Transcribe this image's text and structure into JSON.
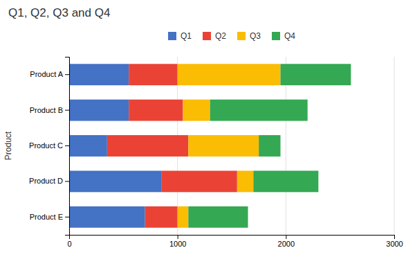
{
  "chart_data": {
    "type": "bar",
    "orientation": "horizontal",
    "stacked": true,
    "title": "Q1, Q2, Q3 and Q4",
    "ylabel": "Product",
    "categories": [
      "Product A",
      "Product B",
      "Product C",
      "Product D",
      "Product E"
    ],
    "series": [
      {
        "name": "Q1",
        "color": "#4472C4",
        "values": [
          550,
          550,
          350,
          850,
          700
        ]
      },
      {
        "name": "Q2",
        "color": "#EA4335",
        "values": [
          450,
          500,
          750,
          700,
          300
        ]
      },
      {
        "name": "Q3",
        "color": "#FBBC04",
        "values": [
          950,
          250,
          650,
          150,
          100
        ]
      },
      {
        "name": "Q4",
        "color": "#34A853",
        "values": [
          650,
          900,
          200,
          600,
          550
        ]
      }
    ],
    "xlim": [
      0,
      3000
    ],
    "xticks": [
      0,
      1000,
      2000,
      3000
    ],
    "grid": true,
    "legend": "top"
  }
}
